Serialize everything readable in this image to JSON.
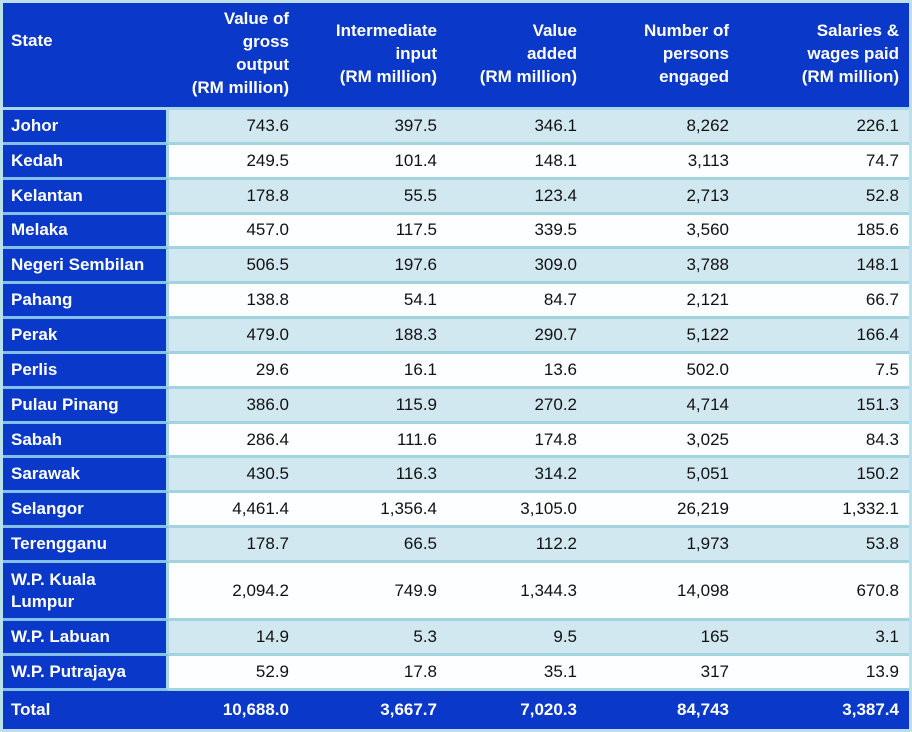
{
  "colors": {
    "header_blue": "#0A38C8",
    "light_row": "#D2E8F1",
    "white_row": "#FDFEFF",
    "divider": "#A2D4E0",
    "outer_border": "#BCDFEB",
    "header_text": "#FFFFFF",
    "data_text": "#111111"
  },
  "table": {
    "headers": [
      "State",
      "Value of\ngross\noutput\n(RM million)",
      "Intermediate\ninput\n(RM million)",
      "Value\nadded\n(RM million)",
      "Number of\npersons\nengaged",
      "Salaries &\nwages paid\n(RM million)"
    ],
    "rows": [
      {
        "state": "Johor",
        "values": [
          "743.6",
          "397.5",
          "346.1",
          "8,262",
          "226.1"
        ]
      },
      {
        "state": "Kedah",
        "values": [
          "249.5",
          "101.4",
          "148.1",
          "3,113",
          "74.7"
        ]
      },
      {
        "state": "Kelantan",
        "values": [
          "178.8",
          "55.5",
          "123.4",
          "2,713",
          "52.8"
        ]
      },
      {
        "state": "Melaka",
        "values": [
          "457.0",
          "117.5",
          "339.5",
          "3,560",
          "185.6"
        ]
      },
      {
        "state": "Negeri Sembilan",
        "values": [
          "506.5",
          "197.6",
          "309.0",
          "3,788",
          "148.1"
        ]
      },
      {
        "state": "Pahang",
        "values": [
          "138.8",
          "54.1",
          "84.7",
          "2,121",
          "66.7"
        ]
      },
      {
        "state": "Perak",
        "values": [
          "479.0",
          "188.3",
          "290.7",
          "5,122",
          "166.4"
        ]
      },
      {
        "state": "Perlis",
        "values": [
          "29.6",
          "16.1",
          "13.6",
          "502.0",
          "7.5"
        ]
      },
      {
        "state": "Pulau Pinang",
        "values": [
          "386.0",
          "115.9",
          "270.2",
          "4,714",
          "151.3"
        ]
      },
      {
        "state": "Sabah",
        "values": [
          "286.4",
          "111.6",
          "174.8",
          "3,025",
          "84.3"
        ]
      },
      {
        "state": "Sarawak",
        "values": [
          "430.5",
          "116.3",
          "314.2",
          "5,051",
          "150.2"
        ]
      },
      {
        "state": "Selangor",
        "values": [
          "4,461.4",
          "1,356.4",
          "3,105.0",
          "26,219",
          "1,332.1"
        ]
      },
      {
        "state": "Terengganu",
        "values": [
          "178.7",
          "66.5",
          "112.2",
          "1,973",
          "53.8"
        ]
      },
      {
        "state": "W.P. Kuala Lumpur",
        "values": [
          "2,094.2",
          "749.9",
          "1,344.3",
          "14,098",
          "670.8"
        ]
      },
      {
        "state": "W.P. Labuan",
        "values": [
          "14.9",
          "5.3",
          "9.5",
          "165",
          "3.1"
        ]
      },
      {
        "state": "W.P. Putrajaya",
        "values": [
          "52.9",
          "17.8",
          "35.1",
          "317",
          "13.9"
        ]
      }
    ],
    "total": {
      "state": "Total",
      "values": [
        "10,688.0",
        "3,667.7",
        "7,020.3",
        "84,743",
        "3,387.4"
      ]
    }
  },
  "chart_data": {
    "type": "table",
    "title": "",
    "columns": [
      "State",
      "Value of gross output (RM million)",
      "Intermediate input (RM million)",
      "Value added (RM million)",
      "Number of persons engaged",
      "Salaries & wages paid (RM million)"
    ],
    "rows": [
      [
        "Johor",
        743.6,
        397.5,
        346.1,
        8262,
        226.1
      ],
      [
        "Kedah",
        249.5,
        101.4,
        148.1,
        3113,
        74.7
      ],
      [
        "Kelantan",
        178.8,
        55.5,
        123.4,
        2713,
        52.8
      ],
      [
        "Melaka",
        457.0,
        117.5,
        339.5,
        3560,
        185.6
      ],
      [
        "Negeri Sembilan",
        506.5,
        197.6,
        309.0,
        3788,
        148.1
      ],
      [
        "Pahang",
        138.8,
        54.1,
        84.7,
        2121,
        66.7
      ],
      [
        "Perak",
        479.0,
        188.3,
        290.7,
        5122,
        166.4
      ],
      [
        "Perlis",
        29.6,
        16.1,
        13.6,
        502.0,
        7.5
      ],
      [
        "Pulau Pinang",
        386.0,
        115.9,
        270.2,
        4714,
        151.3
      ],
      [
        "Sabah",
        286.4,
        111.6,
        174.8,
        3025,
        84.3
      ],
      [
        "Sarawak",
        430.5,
        116.3,
        314.2,
        5051,
        150.2
      ],
      [
        "Selangor",
        4461.4,
        1356.4,
        3105.0,
        26219,
        1332.1
      ],
      [
        "Terengganu",
        178.7,
        66.5,
        112.2,
        1973,
        53.8
      ],
      [
        "W.P. Kuala Lumpur",
        2094.2,
        749.9,
        1344.3,
        14098,
        670.8
      ],
      [
        "W.P. Labuan",
        14.9,
        5.3,
        9.5,
        165,
        3.1
      ],
      [
        "W.P. Putrajaya",
        52.9,
        17.8,
        35.1,
        317,
        13.9
      ],
      [
        "Total",
        10688.0,
        3667.7,
        7020.3,
        84743,
        3387.4
      ]
    ]
  }
}
